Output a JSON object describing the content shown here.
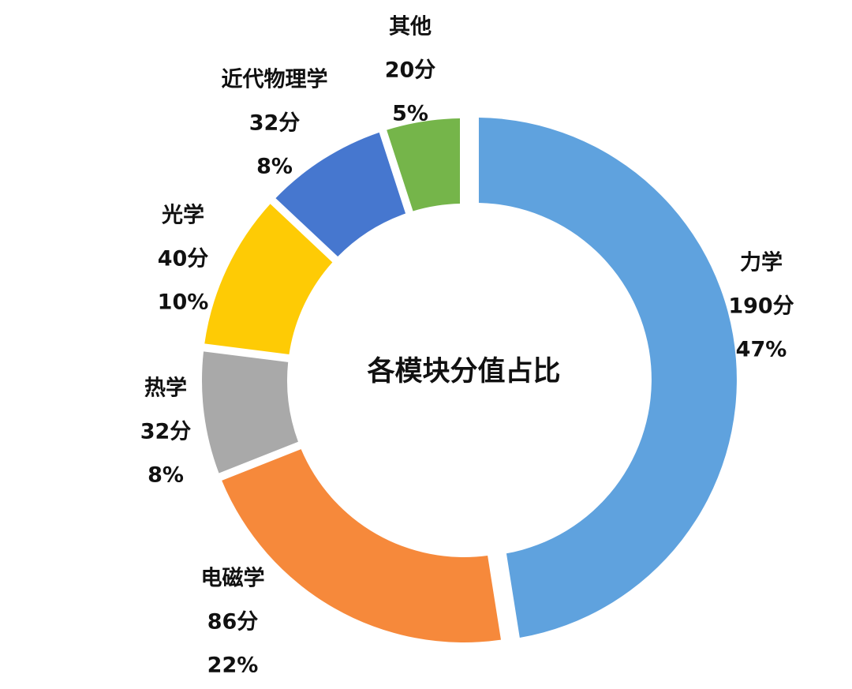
{
  "chart_data": {
    "type": "pie",
    "variant": "donut",
    "title": "各模块分值占比",
    "categories": [
      "力学",
      "电磁学",
      "热学",
      "光学",
      "近代物理学",
      "其他"
    ],
    "values": [
      190,
      86,
      32,
      40,
      32,
      20
    ],
    "value_labels": [
      "190分",
      "86分",
      "32分",
      "40分",
      "32分",
      "20分"
    ],
    "percent_labels": [
      "47%",
      "22%",
      "8%",
      "10%",
      "8%",
      "5%"
    ],
    "colors": [
      "#5FA2DE",
      "#F6893B",
      "#A9A9A9",
      "#FECB05",
      "#4677CF",
      "#75B54A"
    ],
    "start": "12 o'clock",
    "direction": "clockwise",
    "legend": "none"
  }
}
